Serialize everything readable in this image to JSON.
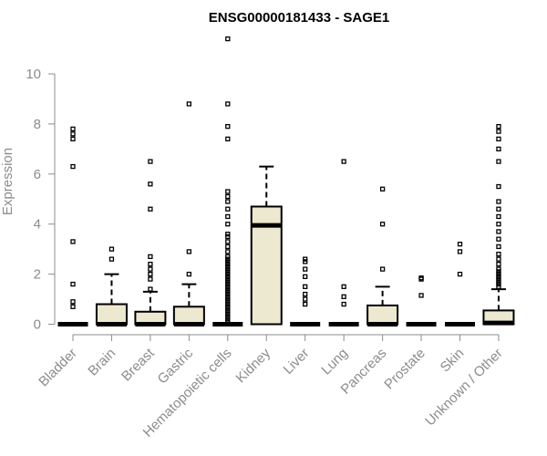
{
  "chart_data": {
    "type": "box",
    "title": "ENSG00000181433 - SAGE1",
    "xlabel": "",
    "ylabel": "Expression",
    "ylim": [
      0,
      11.6
    ],
    "yticks": [
      0,
      2,
      4,
      6,
      8,
      10
    ],
    "categories": [
      "Bladder",
      "Brain",
      "Breast",
      "Gastric",
      "Hematopoietic cells",
      "Kidney",
      "Liver",
      "Lung",
      "Pancreas",
      "Prostate",
      "Skin",
      "Unknown / Other"
    ],
    "box_fill": "#ede8d0",
    "box_stroke": "#000000",
    "boxes": [
      {
        "q1": 0,
        "median": 0,
        "q3": 0,
        "whisker_low": 0,
        "whisker_high": 0,
        "outliers": [
          0.7,
          0.9,
          1.6,
          3.3,
          6.3,
          7.4,
          7.6,
          7.8
        ]
      },
      {
        "q1": 0,
        "median": 0,
        "q3": 0.8,
        "whisker_low": 0,
        "whisker_high": 2.0,
        "outliers": [
          2.6,
          3.0
        ]
      },
      {
        "q1": 0,
        "median": 0,
        "q3": 0.5,
        "whisker_low": 0,
        "whisker_high": 1.3,
        "outliers": [
          1.4,
          1.8,
          2.0,
          2.2,
          2.4,
          2.7,
          4.6,
          5.6,
          6.5
        ]
      },
      {
        "q1": 0,
        "median": 0,
        "q3": 0.7,
        "whisker_low": 0,
        "whisker_high": 1.6,
        "outliers": [
          2.0,
          2.9,
          8.8
        ]
      },
      {
        "q1": 0,
        "median": 0,
        "q3": 0,
        "whisker_low": 0,
        "whisker_high": 0,
        "outliers": [
          0.1,
          0.2,
          0.3,
          0.4,
          0.5,
          0.6,
          0.7,
          0.8,
          0.9,
          1.0,
          1.1,
          1.2,
          1.3,
          1.4,
          1.5,
          1.6,
          1.7,
          1.8,
          1.9,
          2.0,
          2.1,
          2.2,
          2.3,
          2.4,
          2.5,
          2.6,
          2.7,
          2.9,
          3.1,
          3.3,
          3.5,
          3.6,
          4.0,
          4.3,
          4.6,
          4.9,
          5.1,
          5.3,
          7.4,
          7.9,
          8.8,
          11.4
        ]
      },
      {
        "q1": 0,
        "median": 3.95,
        "q3": 4.7,
        "whisker_low": 0,
        "whisker_high": 6.3,
        "outliers": []
      },
      {
        "q1": 0,
        "median": 0,
        "q3": 0,
        "whisker_low": 0,
        "whisker_high": 0,
        "outliers": [
          0.8,
          1.0,
          1.2,
          1.5,
          1.9,
          2.2,
          2.5,
          2.6
        ]
      },
      {
        "q1": 0,
        "median": 0,
        "q3": 0,
        "whisker_low": 0,
        "whisker_high": 0,
        "outliers": [
          0.8,
          1.1,
          1.5,
          6.5
        ]
      },
      {
        "q1": 0,
        "median": 0,
        "q3": 0.75,
        "whisker_low": 0,
        "whisker_high": 1.5,
        "outliers": [
          2.2,
          4.0,
          5.4
        ]
      },
      {
        "q1": 0,
        "median": 0,
        "q3": 0,
        "whisker_low": 0,
        "whisker_high": 0,
        "outliers": [
          1.15,
          1.8,
          1.85
        ]
      },
      {
        "q1": 0,
        "median": 0,
        "q3": 0,
        "whisker_low": 0,
        "whisker_high": 0,
        "outliers": [
          2.0,
          2.9,
          3.2
        ]
      },
      {
        "q1": 0,
        "median": 0.05,
        "q3": 0.55,
        "whisker_low": 0,
        "whisker_high": 1.4,
        "outliers": [
          1.5,
          1.6,
          1.7,
          1.8,
          1.9,
          2.0,
          2.1,
          2.2,
          2.4,
          2.6,
          2.8,
          3.1,
          3.4,
          3.7,
          4.0,
          4.3,
          4.6,
          4.9,
          5.5,
          6.5,
          7.0,
          7.4,
          7.7,
          7.9
        ]
      }
    ]
  }
}
